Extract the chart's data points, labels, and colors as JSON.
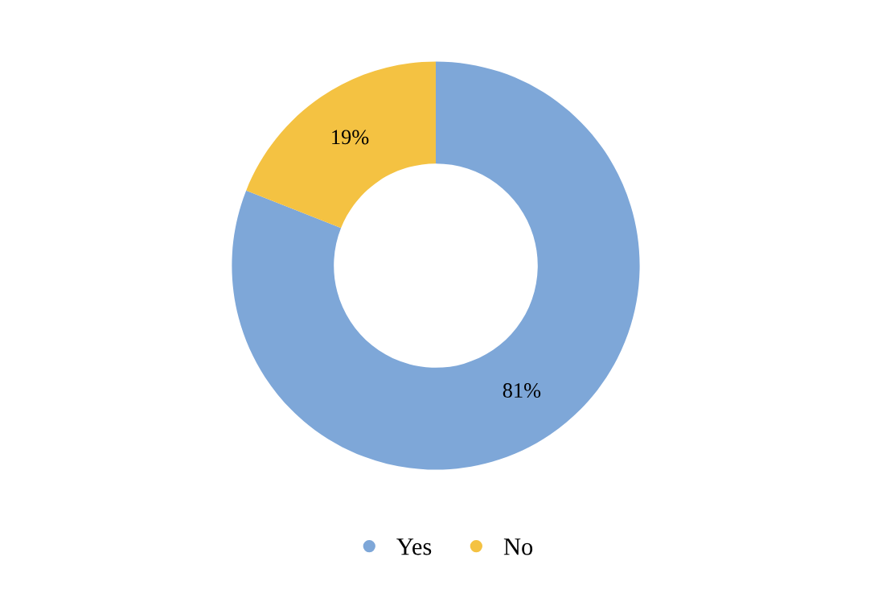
{
  "chart_data": {
    "type": "donut",
    "categories": [
      "Yes",
      "No"
    ],
    "values": [
      81,
      19
    ],
    "colors": [
      "#7ea7d8",
      "#f4c242"
    ],
    "value_labels": [
      "81%",
      "19%"
    ],
    "legend": "bottom"
  }
}
